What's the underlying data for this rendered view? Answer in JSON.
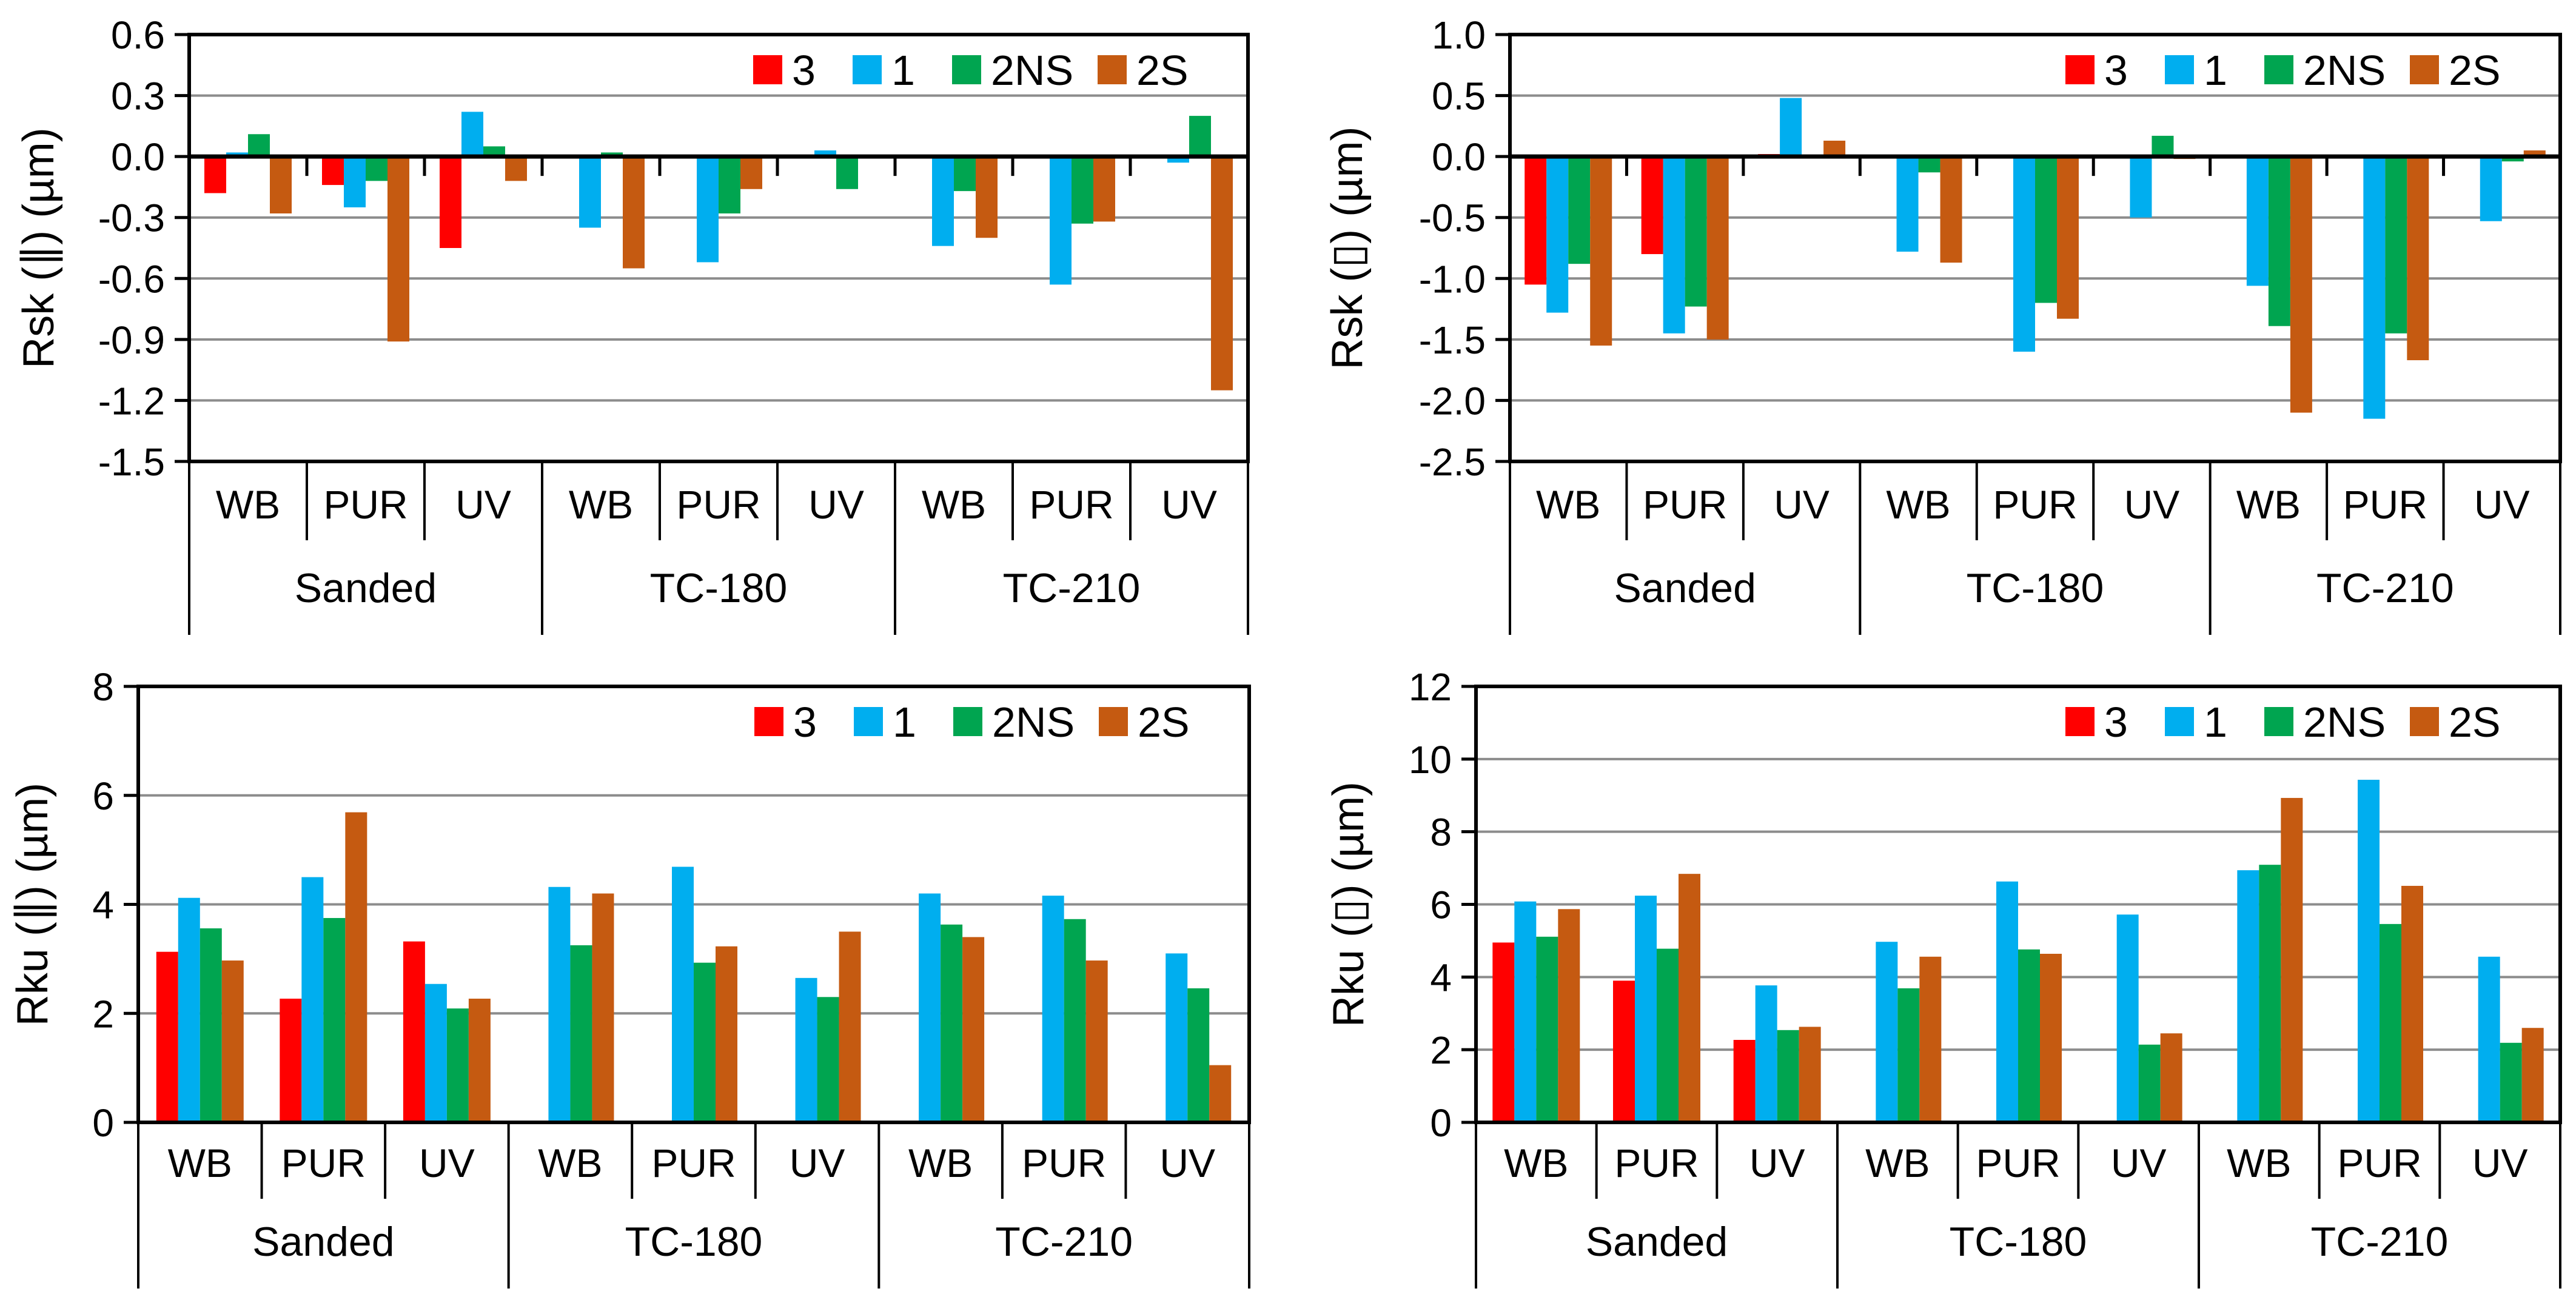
{
  "figure": {
    "background": "#FFFFFF",
    "colors": {
      "axis": "#000000",
      "gridline": "#8C8C8C"
    },
    "legend": {
      "position": "top-right-inside-plot",
      "items": [
        {
          "label": "3",
          "color": "#FF0000"
        },
        {
          "label": "1",
          "color": "#00AEEF"
        },
        {
          "label": "2NS",
          "color": "#00A550"
        },
        {
          "label": "2S",
          "color": "#C55A11"
        }
      ]
    },
    "x_axis": {
      "coatings": [
        "WB",
        "PUR",
        "UV"
      ],
      "treatments": [
        {
          "label": "Sanded"
        },
        {
          "label": "TC-180"
        },
        {
          "label": "TC-210"
        }
      ]
    }
  },
  "chart_data": [
    {
      "type": "bar",
      "panel": "top-left",
      "title": "",
      "xlabel": "",
      "ylabel": "Rsk (∥) (µm)",
      "ylim": [
        -1.5,
        0.6
      ],
      "ytick_values": [
        0.6,
        0.3,
        0.0,
        -0.3,
        -0.6,
        -0.9,
        -1.2,
        -1.5
      ],
      "yticks": [
        "0.6",
        "0.3",
        "0.0",
        "-0.3",
        "-0.6",
        "-0.9",
        "-1.2",
        "-1.5"
      ],
      "grid": true,
      "legend_position": "top-right",
      "categories": [
        "Sanded-WB",
        "Sanded-PUR",
        "Sanded-UV",
        "TC-180-WB",
        "TC-180-PUR",
        "TC-180-UV",
        "TC-210-WB",
        "TC-210-PUR",
        "TC-210-UV"
      ],
      "series": [
        {
          "name": "3",
          "values": [
            -0.18,
            -0.14,
            -0.45,
            null,
            null,
            null,
            null,
            null,
            null
          ]
        },
        {
          "name": "1",
          "values": [
            0.02,
            -0.25,
            0.22,
            -0.35,
            -0.52,
            0.03,
            -0.44,
            -0.63,
            -0.03
          ]
        },
        {
          "name": "2NS",
          "values": [
            0.11,
            -0.12,
            0.05,
            0.02,
            -0.28,
            -0.16,
            -0.17,
            -0.33,
            0.2
          ]
        },
        {
          "name": "2S",
          "values": [
            -0.28,
            -0.91,
            -0.12,
            -0.55,
            -0.16,
            null,
            -0.4,
            -0.32,
            -1.15
          ]
        }
      ],
      "layout": {
        "plot_left": 312,
        "plot_top": 57,
        "plot_right": 2058,
        "plot_bottom": 761,
        "ylabel_x": 88,
        "row1_h": 130,
        "row2_h": 130,
        "legend_right": 100,
        "legend_dy": 58
      }
    },
    {
      "type": "bar",
      "panel": "top-right",
      "title": "",
      "xlabel": "",
      "ylabel": "Rsk (▯) (µm)",
      "ylim": [
        -2.5,
        1.0
      ],
      "ytick_values": [
        1.0,
        0.5,
        0.0,
        -0.5,
        -1.0,
        -1.5,
        -2.0,
        -2.5
      ],
      "yticks": [
        "1.0",
        "0.5",
        "0.0",
        "-0.5",
        "-1.0",
        "-1.5",
        "-2.0",
        "-2.5"
      ],
      "grid": true,
      "legend_position": "top-right",
      "categories": [
        "Sanded-WB",
        "Sanded-PUR",
        "Sanded-UV",
        "TC-180-WB",
        "TC-180-PUR",
        "TC-180-UV",
        "TC-210-WB",
        "TC-210-PUR",
        "TC-210-UV"
      ],
      "series": [
        {
          "name": "3",
          "values": [
            -1.05,
            -0.8,
            0.02,
            null,
            null,
            null,
            null,
            null,
            null
          ]
        },
        {
          "name": "1",
          "values": [
            -1.28,
            -1.45,
            0.48,
            -0.78,
            -1.6,
            -0.5,
            -1.06,
            -2.15,
            -0.53
          ]
        },
        {
          "name": "2NS",
          "values": [
            -0.88,
            -1.23,
            null,
            -0.13,
            -1.2,
            0.17,
            -1.39,
            -1.45,
            -0.04
          ]
        },
        {
          "name": "2S",
          "values": [
            -1.55,
            -1.5,
            0.13,
            -0.87,
            -1.33,
            -0.02,
            -2.1,
            -1.67,
            0.05
          ]
        }
      ],
      "layout": {
        "plot_left": 366,
        "plot_top": 57,
        "plot_right": 2098,
        "plot_bottom": 761,
        "ylabel_x": 122,
        "row1_h": 130,
        "row2_h": 130,
        "legend_right": 100,
        "legend_dy": 58
      }
    },
    {
      "type": "bar",
      "panel": "bottom-left",
      "title": "",
      "xlabel": "",
      "ylabel": "Rku (∥) (µm)",
      "ylim": [
        0,
        8
      ],
      "ytick_values": [
        8,
        6,
        4,
        2,
        0
      ],
      "yticks": [
        "8",
        "6",
        "4",
        "2",
        "0"
      ],
      "grid": true,
      "legend_position": "top-right",
      "categories": [
        "Sanded-WB",
        "Sanded-PUR",
        "Sanded-UV",
        "TC-180-WB",
        "TC-180-PUR",
        "TC-180-UV",
        "TC-210-WB",
        "TC-210-PUR",
        "TC-210-UV"
      ],
      "series": [
        {
          "name": "3",
          "values": [
            3.13,
            2.27,
            3.32,
            null,
            null,
            null,
            null,
            null,
            null
          ]
        },
        {
          "name": "1",
          "values": [
            4.12,
            4.5,
            2.54,
            4.32,
            4.69,
            2.65,
            4.2,
            4.16,
            3.1
          ]
        },
        {
          "name": "2NS",
          "values": [
            3.56,
            3.75,
            2.09,
            3.25,
            2.93,
            2.3,
            3.63,
            3.73,
            2.46
          ]
        },
        {
          "name": "2S",
          "values": [
            2.97,
            5.69,
            2.27,
            4.2,
            3.23,
            3.5,
            3.4,
            2.97,
            1.05
          ]
        }
      ],
      "layout": {
        "plot_left": 228,
        "plot_top": 62,
        "plot_right": 2060,
        "plot_bottom": 781,
        "ylabel_x": 78,
        "row1_h": 126,
        "row2_h": 122,
        "legend_right": 100,
        "legend_dy": 58
      }
    },
    {
      "type": "bar",
      "panel": "bottom-right",
      "title": "",
      "xlabel": "",
      "ylabel": "Rku (▯)  (µm)",
      "ylim": [
        0,
        12
      ],
      "ytick_values": [
        12,
        10,
        8,
        6,
        4,
        2,
        0
      ],
      "yticks": [
        "12",
        "10",
        "8",
        "6",
        "4",
        "2",
        "0"
      ],
      "grid": true,
      "legend_position": "top-right",
      "categories": [
        "Sanded-WB",
        "Sanded-PUR",
        "Sanded-UV",
        "TC-180-WB",
        "TC-180-PUR",
        "TC-180-UV",
        "TC-210-WB",
        "TC-210-PUR",
        "TC-210-UV"
      ],
      "series": [
        {
          "name": "3",
          "values": [
            4.95,
            3.9,
            2.27,
            null,
            null,
            null,
            null,
            null,
            null
          ]
        },
        {
          "name": "1",
          "values": [
            6.08,
            6.24,
            3.77,
            4.97,
            6.63,
            5.72,
            6.94,
            9.43,
            4.56
          ]
        },
        {
          "name": "2NS",
          "values": [
            5.11,
            4.78,
            2.54,
            3.69,
            4.76,
            2.14,
            7.09,
            5.46,
            2.19
          ]
        },
        {
          "name": "2S",
          "values": [
            5.87,
            6.84,
            2.63,
            4.56,
            4.64,
            2.45,
            8.93,
            6.51,
            2.6
          ]
        }
      ],
      "layout": {
        "plot_left": 310,
        "plot_top": 62,
        "plot_right": 2098,
        "plot_bottom": 781,
        "ylabel_x": 124,
        "row1_h": 126,
        "row2_h": 122,
        "legend_right": 100,
        "legend_dy": 58
      }
    }
  ]
}
